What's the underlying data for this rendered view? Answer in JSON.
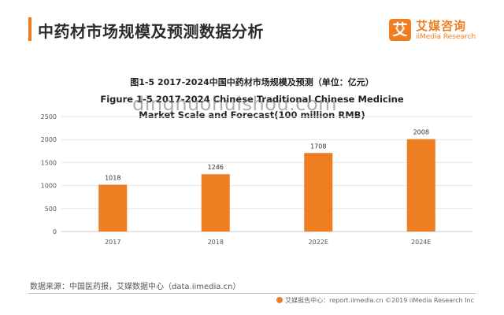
{
  "header": {
    "title": "中药材市场规模及预测数据分析",
    "accent_color": "#ef7d22"
  },
  "logo": {
    "mark": "艾",
    "name_cn": "艾媒咨询",
    "name_en": "iiMedia Research"
  },
  "figure": {
    "title_cn": "图1-5 2017-2024中国中药材市场规模及预测（单位：亿元）",
    "title_en": "Figure 1-5 2017-2024 Chinese Traditional Chinese Medicine Market Scale and Forecast(100 million RMB)"
  },
  "watermark": "dingnuohuishou.com",
  "chart_data": {
    "type": "bar",
    "categories": [
      "2017",
      "2018",
      "2022E",
      "2024E"
    ],
    "values": [
      1018,
      1246,
      1708,
      2008
    ],
    "title": "图1-5 2017-2024中国中药材市场规模及预测（单位：亿元）",
    "xlabel": "",
    "ylabel": "",
    "ylim": [
      0,
      2500
    ],
    "yticks": [
      0,
      500,
      1000,
      1500,
      2000,
      2500
    ],
    "grid": true,
    "bar_color": "#ef7d22",
    "data_labels": true
  },
  "source": "数据来源：中国医药报，艾媒数据中心（data.iimedia.cn）",
  "footer": "艾媒报告中心：report.iimedia.cn  ©2019  iiMedia Research Inc"
}
